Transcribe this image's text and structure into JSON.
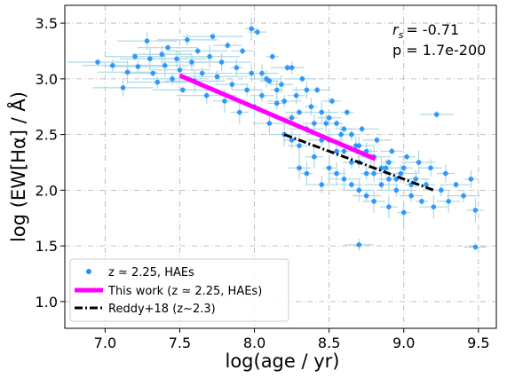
{
  "chart_data": {
    "type": "scatter",
    "xlabel": "log(age / yr)",
    "ylabel": "log (EW[Hα] / Å)",
    "xlim": [
      6.73,
      9.62
    ],
    "ylim": [
      0.76,
      3.66
    ],
    "xticks": [
      7.0,
      7.5,
      8.0,
      8.5,
      9.0,
      9.5
    ],
    "xtick_labels": [
      "7.0",
      "7.5",
      "8.0",
      "8.5",
      "9.0",
      "9.5"
    ],
    "yticks": [
      1.0,
      1.5,
      2.0,
      2.5,
      3.0,
      3.5
    ],
    "ytick_labels": [
      "1.0",
      "1.5",
      "2.0",
      "2.5",
      "3.0",
      "3.5"
    ],
    "grid": true,
    "grid_style": "dash-dot",
    "legend_placement": "lower-left",
    "annotations": {
      "rs": "= -0.71",
      "p": "p = 1.7e-200"
    },
    "legend": {
      "scatter": "z ≃ 2.25, HAEs",
      "fit": "This work (z ≃ 2.25, HAEs)",
      "reddy": "Reddy+18 (z~2.3)"
    },
    "colors": {
      "points": "#1e90ff",
      "errorbars": "#add8e6",
      "fit": "#ff00ff",
      "reddy": "#000000",
      "grid": "#b0b0b0"
    },
    "series": [
      {
        "kind": "scatter",
        "points": [
          [
            6.95,
            3.15
          ],
          [
            7.05,
            3.12
          ],
          [
            7.12,
            2.92
          ],
          [
            7.15,
            3.06
          ],
          [
            7.2,
            3.2
          ],
          [
            7.22,
            3.11
          ],
          [
            7.28,
            3.34
          ],
          [
            7.3,
            3.18
          ],
          [
            7.32,
            3.05
          ],
          [
            7.35,
            2.97
          ],
          [
            7.38,
            3.22
          ],
          [
            7.4,
            3.12
          ],
          [
            7.42,
            3.28
          ],
          [
            7.45,
            3.0
          ],
          [
            7.48,
            3.18
          ],
          [
            7.5,
            3.08
          ],
          [
            7.52,
            2.9
          ],
          [
            7.55,
            3.35
          ],
          [
            7.58,
            3.15
          ],
          [
            7.6,
            2.98
          ],
          [
            7.62,
            3.25
          ],
          [
            7.65,
            3.05
          ],
          [
            7.68,
            2.85
          ],
          [
            7.7,
            3.2
          ],
          [
            7.72,
            3.38
          ],
          [
            7.75,
            3.02
          ],
          [
            7.78,
            3.15
          ],
          [
            7.8,
            2.8
          ],
          [
            7.82,
            3.3
          ],
          [
            7.85,
            2.95
          ],
          [
            7.88,
            3.1
          ],
          [
            7.9,
            2.7
          ],
          [
            7.92,
            3.25
          ],
          [
            7.95,
            2.9
          ],
          [
            7.98,
            3.05
          ],
          [
            8.0,
            2.75
          ],
          [
            8.02,
            3.42
          ],
          [
            8.05,
            2.85
          ],
          [
            8.08,
            3.0
          ],
          [
            8.1,
            2.6
          ],
          [
            8.12,
            3.2
          ],
          [
            8.15,
            2.78
          ],
          [
            8.18,
            2.95
          ],
          [
            8.2,
            2.5
          ],
          [
            8.22,
            3.1
          ],
          [
            8.25,
            2.65
          ],
          [
            8.28,
            2.85
          ],
          [
            8.3,
            2.4
          ],
          [
            8.32,
            3.0
          ],
          [
            8.35,
            2.55
          ],
          [
            8.38,
            2.75
          ],
          [
            8.4,
            2.3
          ],
          [
            8.42,
            2.9
          ],
          [
            8.45,
            2.45
          ],
          [
            8.48,
            2.6
          ],
          [
            8.5,
            2.2
          ],
          [
            8.52,
            2.8
          ],
          [
            8.55,
            2.35
          ],
          [
            8.58,
            2.5
          ],
          [
            8.6,
            2.1
          ],
          [
            8.62,
            2.7
          ],
          [
            8.65,
            2.25
          ],
          [
            8.68,
            2.4
          ],
          [
            8.7,
            2.0
          ],
          [
            8.72,
            2.55
          ],
          [
            8.75,
            2.15
          ],
          [
            8.78,
            2.3
          ],
          [
            8.8,
            1.9
          ],
          [
            8.82,
            2.45
          ],
          [
            8.85,
            2.05
          ],
          [
            8.88,
            2.2
          ],
          [
            8.9,
            1.85
          ],
          [
            8.92,
            2.35
          ],
          [
            8.95,
            2.0
          ],
          [
            8.98,
            2.15
          ],
          [
            9.0,
            1.8
          ],
          [
            9.02,
            2.3
          ],
          [
            9.05,
            1.95
          ],
          [
            9.08,
            2.1
          ],
          [
            9.1,
            2.25
          ],
          [
            9.12,
            1.9
          ],
          [
            9.15,
            2.05
          ],
          [
            9.18,
            2.2
          ],
          [
            9.2,
            1.85
          ],
          [
            9.22,
            2.68
          ],
          [
            9.25,
            2.0
          ],
          [
            9.28,
            2.15
          ],
          [
            9.3,
            1.9
          ],
          [
            9.35,
            2.05
          ],
          [
            9.4,
            1.95
          ],
          [
            9.45,
            2.1
          ],
          [
            9.48,
            1.82
          ],
          [
            9.48,
            1.49
          ],
          [
            8.7,
            1.51
          ],
          [
            8.05,
            3.05
          ],
          [
            7.98,
            3.45
          ],
          [
            8.1,
            2.98
          ],
          [
            8.25,
            3.1
          ],
          [
            8.35,
            2.9
          ],
          [
            8.45,
            2.7
          ],
          [
            8.55,
            2.6
          ],
          [
            8.65,
            2.5
          ],
          [
            8.4,
            2.6
          ],
          [
            8.5,
            2.45
          ],
          [
            8.6,
            2.35
          ],
          [
            8.7,
            2.25
          ],
          [
            8.8,
            2.15
          ],
          [
            8.9,
            2.1
          ],
          [
            8.3,
            2.7
          ],
          [
            8.2,
            2.8
          ],
          [
            8.15,
            2.9
          ],
          [
            8.55,
            2.15
          ],
          [
            8.65,
            2.05
          ],
          [
            8.75,
            1.95
          ],
          [
            8.45,
            2.05
          ],
          [
            8.35,
            2.15
          ],
          [
            8.6,
            2.55
          ],
          [
            8.5,
            2.65
          ],
          [
            8.7,
            2.4
          ],
          [
            8.8,
            2.3
          ],
          [
            8.9,
            2.25
          ],
          [
            9.0,
            2.2
          ],
          [
            8.75,
            2.35
          ],
          [
            8.85,
            2.2
          ],
          [
            8.95,
            2.1
          ],
          [
            9.05,
            2.05
          ],
          [
            8.25,
            2.45
          ],
          [
            8.3,
            2.2
          ]
        ]
      },
      {
        "kind": "line",
        "name": "This work (z ≃ 2.25, HAEs)",
        "x": [
          7.5,
          8.81
        ],
        "y": [
          3.03,
          2.28
        ]
      },
      {
        "kind": "line",
        "name": "Reddy+18 (z~2.3)",
        "x": [
          8.2,
          9.2
        ],
        "y": [
          2.5,
          2.0
        ]
      }
    ]
  }
}
